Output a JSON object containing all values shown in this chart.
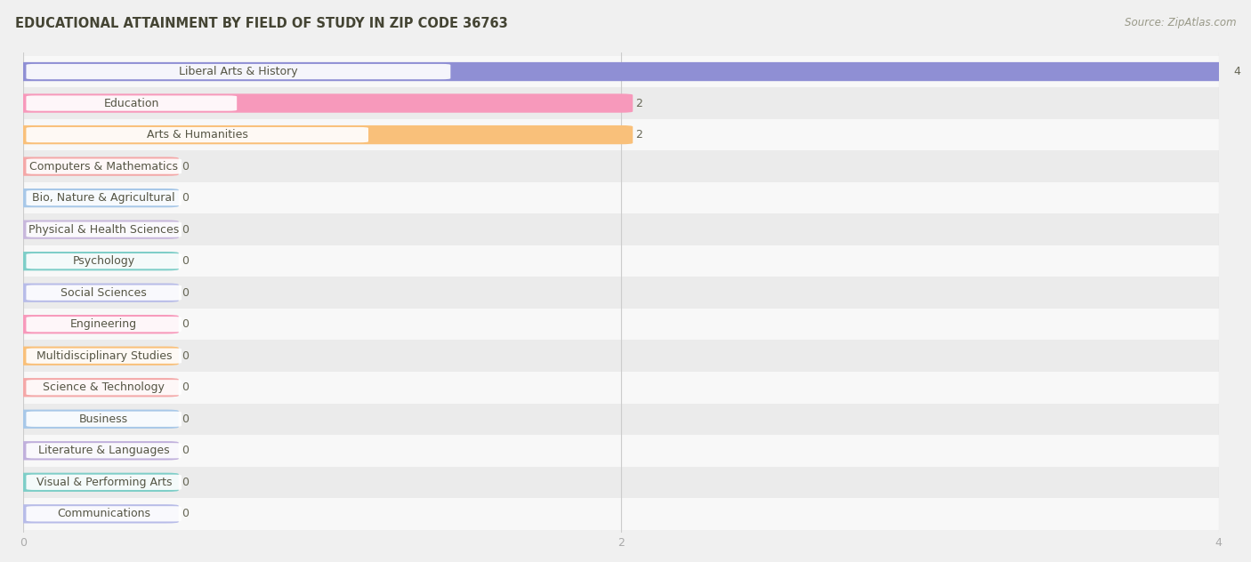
{
  "title": "EDUCATIONAL ATTAINMENT BY FIELD OF STUDY IN ZIP CODE 36763",
  "source": "Source: ZipAtlas.com",
  "categories": [
    "Liberal Arts & History",
    "Education",
    "Arts & Humanities",
    "Computers & Mathematics",
    "Bio, Nature & Agricultural",
    "Physical & Health Sciences",
    "Psychology",
    "Social Sciences",
    "Engineering",
    "Multidisciplinary Studies",
    "Science & Technology",
    "Business",
    "Literature & Languages",
    "Visual & Performing Arts",
    "Communications"
  ],
  "values": [
    4,
    2,
    2,
    0,
    0,
    0,
    0,
    0,
    0,
    0,
    0,
    0,
    0,
    0,
    0
  ],
  "bar_colors": [
    "#8f8fd4",
    "#f799bb",
    "#f9c07a",
    "#f4a8a8",
    "#a8c8e8",
    "#c8b8dc",
    "#7ecec8",
    "#b8bce8",
    "#f799bb",
    "#f9c07a",
    "#f4a8a8",
    "#a8c8e8",
    "#c0b0dc",
    "#7ecec8",
    "#b8bce8"
  ],
  "xlim": [
    0,
    4
  ],
  "xticks": [
    0,
    2,
    4
  ],
  "background_color": "#f0f0f0",
  "row_colors": [
    "#f8f8f8",
    "#ebebeb"
  ],
  "title_fontsize": 10.5,
  "label_fontsize": 9,
  "value_fontsize": 9,
  "zero_bar_width": 0.48
}
